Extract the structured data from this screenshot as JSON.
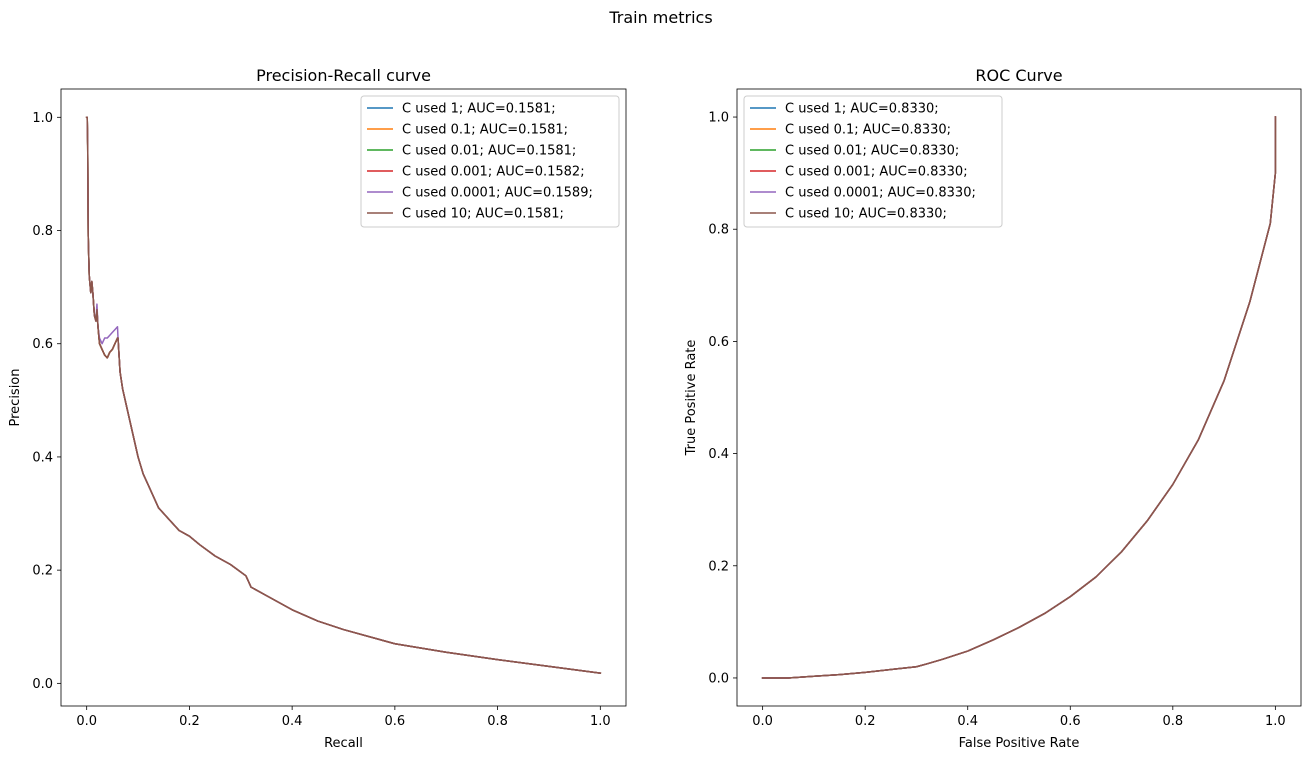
{
  "figure": {
    "suptitle": "Train metrics"
  },
  "colors": {
    "C0": "#1f77b4",
    "C1": "#ff7f0e",
    "C2": "#2ca02c",
    "C3": "#d62728",
    "C4": "#9467bd",
    "C5": "#8c564b"
  },
  "chart_data": [
    {
      "type": "line",
      "title": "Precision-Recall curve",
      "xlabel": "Recall",
      "ylabel": "Precision",
      "xlim": [
        -0.05,
        1.05
      ],
      "ylim": [
        -0.04,
        1.05
      ],
      "xticks": [
        0.0,
        0.2,
        0.4,
        0.6,
        0.8,
        1.0
      ],
      "xtick_labels": [
        "0.0",
        "0.2",
        "0.4",
        "0.6",
        "0.8",
        "1.0"
      ],
      "yticks": [
        0.0,
        0.2,
        0.4,
        0.6,
        0.8,
        1.0
      ],
      "ytick_labels": [
        "0.0",
        "0.2",
        "0.4",
        "0.6",
        "0.8",
        "1.0"
      ],
      "grid": false,
      "legend_position": "top-right",
      "series": [
        {
          "name": "C used 1; AUC=0.1581;",
          "color": "#1f77b4",
          "x": [
            0,
            0.001,
            0.002,
            0.003,
            0.005,
            0.008,
            0.01,
            0.012,
            0.015,
            0.018,
            0.02,
            0.022,
            0.025,
            0.03,
            0.035,
            0.04,
            0.045,
            0.05,
            0.055,
            0.06,
            0.061,
            0.065,
            0.07,
            0.08,
            0.09,
            0.1,
            0.11,
            0.12,
            0.14,
            0.16,
            0.18,
            0.2,
            0.22,
            0.25,
            0.28,
            0.31,
            0.315,
            0.32,
            0.35,
            0.4,
            0.45,
            0.5,
            0.6,
            0.7,
            0.8,
            0.9,
            1.0
          ],
          "y": [
            1.0,
            1.0,
            0.95,
            0.79,
            0.72,
            0.69,
            0.71,
            0.69,
            0.65,
            0.64,
            0.66,
            0.63,
            0.6,
            0.59,
            0.58,
            0.575,
            0.585,
            0.59,
            0.6,
            0.61,
            0.61,
            0.55,
            0.52,
            0.48,
            0.44,
            0.4,
            0.37,
            0.35,
            0.31,
            0.29,
            0.27,
            0.26,
            0.245,
            0.225,
            0.21,
            0.19,
            0.18,
            0.17,
            0.155,
            0.13,
            0.11,
            0.095,
            0.07,
            0.055,
            0.042,
            0.03,
            0.018
          ]
        },
        {
          "name": "C used 0.1; AUC=0.1581;",
          "color": "#ff7f0e",
          "x": [
            0,
            0.001,
            0.002,
            0.003,
            0.005,
            0.008,
            0.01,
            0.012,
            0.015,
            0.018,
            0.02,
            0.022,
            0.025,
            0.03,
            0.035,
            0.04,
            0.045,
            0.05,
            0.055,
            0.06,
            0.061,
            0.065,
            0.07,
            0.08,
            0.09,
            0.1,
            0.11,
            0.12,
            0.14,
            0.16,
            0.18,
            0.2,
            0.22,
            0.25,
            0.28,
            0.31,
            0.315,
            0.32,
            0.35,
            0.4,
            0.45,
            0.5,
            0.6,
            0.7,
            0.8,
            0.9,
            1.0
          ],
          "y": [
            1.0,
            1.0,
            0.95,
            0.79,
            0.72,
            0.69,
            0.71,
            0.69,
            0.65,
            0.64,
            0.66,
            0.63,
            0.6,
            0.59,
            0.58,
            0.575,
            0.585,
            0.59,
            0.6,
            0.61,
            0.61,
            0.55,
            0.52,
            0.48,
            0.44,
            0.4,
            0.37,
            0.35,
            0.31,
            0.29,
            0.27,
            0.26,
            0.245,
            0.225,
            0.21,
            0.19,
            0.18,
            0.17,
            0.155,
            0.13,
            0.11,
            0.095,
            0.07,
            0.055,
            0.042,
            0.03,
            0.018
          ]
        },
        {
          "name": "C used 0.01; AUC=0.1581;",
          "color": "#2ca02c",
          "x": [
            0,
            0.001,
            0.002,
            0.003,
            0.005,
            0.008,
            0.01,
            0.012,
            0.015,
            0.018,
            0.02,
            0.022,
            0.025,
            0.03,
            0.035,
            0.04,
            0.045,
            0.05,
            0.055,
            0.06,
            0.061,
            0.065,
            0.07,
            0.08,
            0.09,
            0.1,
            0.11,
            0.12,
            0.14,
            0.16,
            0.18,
            0.2,
            0.22,
            0.25,
            0.28,
            0.31,
            0.315,
            0.32,
            0.35,
            0.4,
            0.45,
            0.5,
            0.6,
            0.7,
            0.8,
            0.9,
            1.0
          ],
          "y": [
            1.0,
            1.0,
            0.95,
            0.79,
            0.72,
            0.69,
            0.71,
            0.69,
            0.65,
            0.64,
            0.66,
            0.63,
            0.6,
            0.59,
            0.58,
            0.575,
            0.585,
            0.59,
            0.6,
            0.61,
            0.61,
            0.55,
            0.52,
            0.48,
            0.44,
            0.4,
            0.37,
            0.35,
            0.31,
            0.29,
            0.27,
            0.26,
            0.245,
            0.225,
            0.21,
            0.19,
            0.18,
            0.17,
            0.155,
            0.13,
            0.11,
            0.095,
            0.07,
            0.055,
            0.042,
            0.03,
            0.018
          ]
        },
        {
          "name": "C used 0.001; AUC=0.1582;",
          "color": "#d62728",
          "x": [
            0,
            0.001,
            0.002,
            0.003,
            0.005,
            0.008,
            0.01,
            0.012,
            0.015,
            0.018,
            0.02,
            0.022,
            0.025,
            0.03,
            0.035,
            0.04,
            0.045,
            0.05,
            0.055,
            0.06,
            0.061,
            0.065,
            0.07,
            0.08,
            0.09,
            0.1,
            0.11,
            0.12,
            0.14,
            0.16,
            0.18,
            0.2,
            0.22,
            0.25,
            0.28,
            0.31,
            0.315,
            0.32,
            0.35,
            0.4,
            0.45,
            0.5,
            0.6,
            0.7,
            0.8,
            0.9,
            1.0
          ],
          "y": [
            1.0,
            1.0,
            0.95,
            0.79,
            0.72,
            0.69,
            0.71,
            0.69,
            0.65,
            0.64,
            0.66,
            0.63,
            0.6,
            0.59,
            0.58,
            0.575,
            0.585,
            0.59,
            0.6,
            0.61,
            0.61,
            0.55,
            0.52,
            0.48,
            0.44,
            0.4,
            0.37,
            0.35,
            0.31,
            0.29,
            0.27,
            0.26,
            0.245,
            0.225,
            0.21,
            0.19,
            0.18,
            0.17,
            0.155,
            0.13,
            0.11,
            0.095,
            0.07,
            0.055,
            0.042,
            0.03,
            0.018
          ]
        },
        {
          "name": "C used 0.0001; AUC=0.1589;",
          "color": "#9467bd",
          "x": [
            0,
            0.001,
            0.002,
            0.003,
            0.005,
            0.008,
            0.01,
            0.012,
            0.015,
            0.018,
            0.02,
            0.022,
            0.025,
            0.03,
            0.035,
            0.04,
            0.045,
            0.05,
            0.055,
            0.06,
            0.061,
            0.065,
            0.07,
            0.08,
            0.09,
            0.1,
            0.11,
            0.12,
            0.14,
            0.16,
            0.18,
            0.2,
            0.22,
            0.25,
            0.28,
            0.31,
            0.315,
            0.32,
            0.35,
            0.4,
            0.45,
            0.5,
            0.6,
            0.7,
            0.8,
            0.9,
            1.0
          ],
          "y": [
            1.0,
            1.0,
            0.95,
            0.79,
            0.72,
            0.69,
            0.71,
            0.69,
            0.65,
            0.64,
            0.67,
            0.63,
            0.61,
            0.6,
            0.61,
            0.61,
            0.615,
            0.62,
            0.625,
            0.63,
            0.61,
            0.55,
            0.52,
            0.48,
            0.44,
            0.4,
            0.37,
            0.35,
            0.31,
            0.29,
            0.27,
            0.26,
            0.245,
            0.225,
            0.21,
            0.19,
            0.18,
            0.17,
            0.155,
            0.13,
            0.11,
            0.095,
            0.07,
            0.055,
            0.042,
            0.03,
            0.018
          ]
        },
        {
          "name": "C used 10; AUC=0.1581;",
          "color": "#8c564b",
          "x": [
            0,
            0.001,
            0.002,
            0.003,
            0.005,
            0.008,
            0.01,
            0.012,
            0.015,
            0.018,
            0.02,
            0.022,
            0.025,
            0.03,
            0.035,
            0.04,
            0.045,
            0.05,
            0.055,
            0.06,
            0.061,
            0.065,
            0.07,
            0.08,
            0.09,
            0.1,
            0.11,
            0.12,
            0.14,
            0.16,
            0.18,
            0.2,
            0.22,
            0.25,
            0.28,
            0.31,
            0.315,
            0.32,
            0.35,
            0.4,
            0.45,
            0.5,
            0.6,
            0.7,
            0.8,
            0.9,
            1.0
          ],
          "y": [
            1.0,
            1.0,
            0.95,
            0.79,
            0.72,
            0.69,
            0.71,
            0.69,
            0.65,
            0.64,
            0.66,
            0.63,
            0.6,
            0.59,
            0.58,
            0.575,
            0.585,
            0.59,
            0.6,
            0.61,
            0.61,
            0.55,
            0.52,
            0.48,
            0.44,
            0.4,
            0.37,
            0.35,
            0.31,
            0.29,
            0.27,
            0.26,
            0.245,
            0.225,
            0.21,
            0.19,
            0.18,
            0.17,
            0.155,
            0.13,
            0.11,
            0.095,
            0.07,
            0.055,
            0.042,
            0.03,
            0.018
          ]
        }
      ]
    },
    {
      "type": "line",
      "title": "ROC Curve",
      "xlabel": "False Positive Rate",
      "ylabel": "True Positive Rate",
      "xlim": [
        -0.05,
        1.05
      ],
      "ylim": [
        -0.05,
        1.05
      ],
      "xticks": [
        0.0,
        0.2,
        0.4,
        0.6,
        0.8,
        1.0
      ],
      "xtick_labels": [
        "0.0",
        "0.2",
        "0.4",
        "0.6",
        "0.8",
        "1.0"
      ],
      "yticks": [
        0.0,
        0.2,
        0.4,
        0.6,
        0.8,
        1.0
      ],
      "ytick_labels": [
        "0.0",
        "0.2",
        "0.4",
        "0.6",
        "0.8",
        "1.0"
      ],
      "grid": false,
      "legend_position": "top-left",
      "series": [
        {
          "name": "C used 1; AUC=0.8330;",
          "color": "#1f77b4",
          "x": [
            0,
            0.05,
            0.1,
            0.15,
            0.2,
            0.25,
            0.3,
            0.32,
            0.35,
            0.4,
            0.45,
            0.5,
            0.55,
            0.6,
            0.65,
            0.7,
            0.75,
            0.8,
            0.85,
            0.9,
            0.95,
            0.97,
            0.99,
            1.0,
            1.0
          ],
          "y": [
            0,
            0.0,
            0.003,
            0.006,
            0.01,
            0.015,
            0.02,
            0.025,
            0.033,
            0.048,
            0.068,
            0.09,
            0.115,
            0.145,
            0.18,
            0.225,
            0.28,
            0.345,
            0.425,
            0.53,
            0.67,
            0.74,
            0.81,
            0.9,
            1.0
          ]
        },
        {
          "name": "C used 0.1; AUC=0.8330;",
          "color": "#ff7f0e",
          "x": [
            0,
            0.05,
            0.1,
            0.15,
            0.2,
            0.25,
            0.3,
            0.32,
            0.35,
            0.4,
            0.45,
            0.5,
            0.55,
            0.6,
            0.65,
            0.7,
            0.75,
            0.8,
            0.85,
            0.9,
            0.95,
            0.97,
            0.99,
            1.0,
            1.0
          ],
          "y": [
            0,
            0.0,
            0.003,
            0.006,
            0.01,
            0.015,
            0.02,
            0.025,
            0.033,
            0.048,
            0.068,
            0.09,
            0.115,
            0.145,
            0.18,
            0.225,
            0.28,
            0.345,
            0.425,
            0.53,
            0.67,
            0.74,
            0.81,
            0.9,
            1.0
          ]
        },
        {
          "name": "C used 0.01; AUC=0.8330;",
          "color": "#2ca02c",
          "x": [
            0,
            0.05,
            0.1,
            0.15,
            0.2,
            0.25,
            0.3,
            0.32,
            0.35,
            0.4,
            0.45,
            0.5,
            0.55,
            0.6,
            0.65,
            0.7,
            0.75,
            0.8,
            0.85,
            0.9,
            0.95,
            0.97,
            0.99,
            1.0,
            1.0
          ],
          "y": [
            0,
            0.0,
            0.003,
            0.006,
            0.01,
            0.015,
            0.02,
            0.025,
            0.033,
            0.048,
            0.068,
            0.09,
            0.115,
            0.145,
            0.18,
            0.225,
            0.28,
            0.345,
            0.425,
            0.53,
            0.67,
            0.74,
            0.81,
            0.9,
            1.0
          ]
        },
        {
          "name": "C used 0.001; AUC=0.8330;",
          "color": "#d62728",
          "x": [
            0,
            0.05,
            0.1,
            0.15,
            0.2,
            0.25,
            0.3,
            0.32,
            0.35,
            0.4,
            0.45,
            0.5,
            0.55,
            0.6,
            0.65,
            0.7,
            0.75,
            0.8,
            0.85,
            0.9,
            0.95,
            0.97,
            0.99,
            1.0,
            1.0
          ],
          "y": [
            0,
            0.0,
            0.003,
            0.006,
            0.01,
            0.015,
            0.02,
            0.025,
            0.033,
            0.048,
            0.068,
            0.09,
            0.115,
            0.145,
            0.18,
            0.225,
            0.28,
            0.345,
            0.425,
            0.53,
            0.67,
            0.74,
            0.81,
            0.9,
            1.0
          ]
        },
        {
          "name": "C used 0.0001; AUC=0.8330;",
          "color": "#9467bd",
          "x": [
            0,
            0.05,
            0.1,
            0.15,
            0.2,
            0.25,
            0.3,
            0.32,
            0.35,
            0.4,
            0.45,
            0.5,
            0.55,
            0.6,
            0.65,
            0.7,
            0.75,
            0.8,
            0.85,
            0.9,
            0.95,
            0.97,
            0.99,
            1.0,
            1.0
          ],
          "y": [
            0,
            0.0,
            0.003,
            0.006,
            0.01,
            0.015,
            0.02,
            0.025,
            0.033,
            0.048,
            0.068,
            0.09,
            0.115,
            0.145,
            0.18,
            0.225,
            0.28,
            0.345,
            0.425,
            0.53,
            0.67,
            0.74,
            0.81,
            0.9,
            1.0
          ]
        },
        {
          "name": "C used 10; AUC=0.8330;",
          "color": "#8c564b",
          "x": [
            0,
            0.05,
            0.1,
            0.15,
            0.2,
            0.25,
            0.3,
            0.32,
            0.35,
            0.4,
            0.45,
            0.5,
            0.55,
            0.6,
            0.65,
            0.7,
            0.75,
            0.8,
            0.85,
            0.9,
            0.95,
            0.97,
            0.99,
            1.0,
            1.0
          ],
          "y": [
            0,
            0.0,
            0.003,
            0.006,
            0.01,
            0.015,
            0.02,
            0.025,
            0.033,
            0.048,
            0.068,
            0.09,
            0.115,
            0.145,
            0.18,
            0.225,
            0.28,
            0.345,
            0.425,
            0.53,
            0.67,
            0.74,
            0.81,
            0.9,
            1.0
          ]
        }
      ]
    }
  ]
}
